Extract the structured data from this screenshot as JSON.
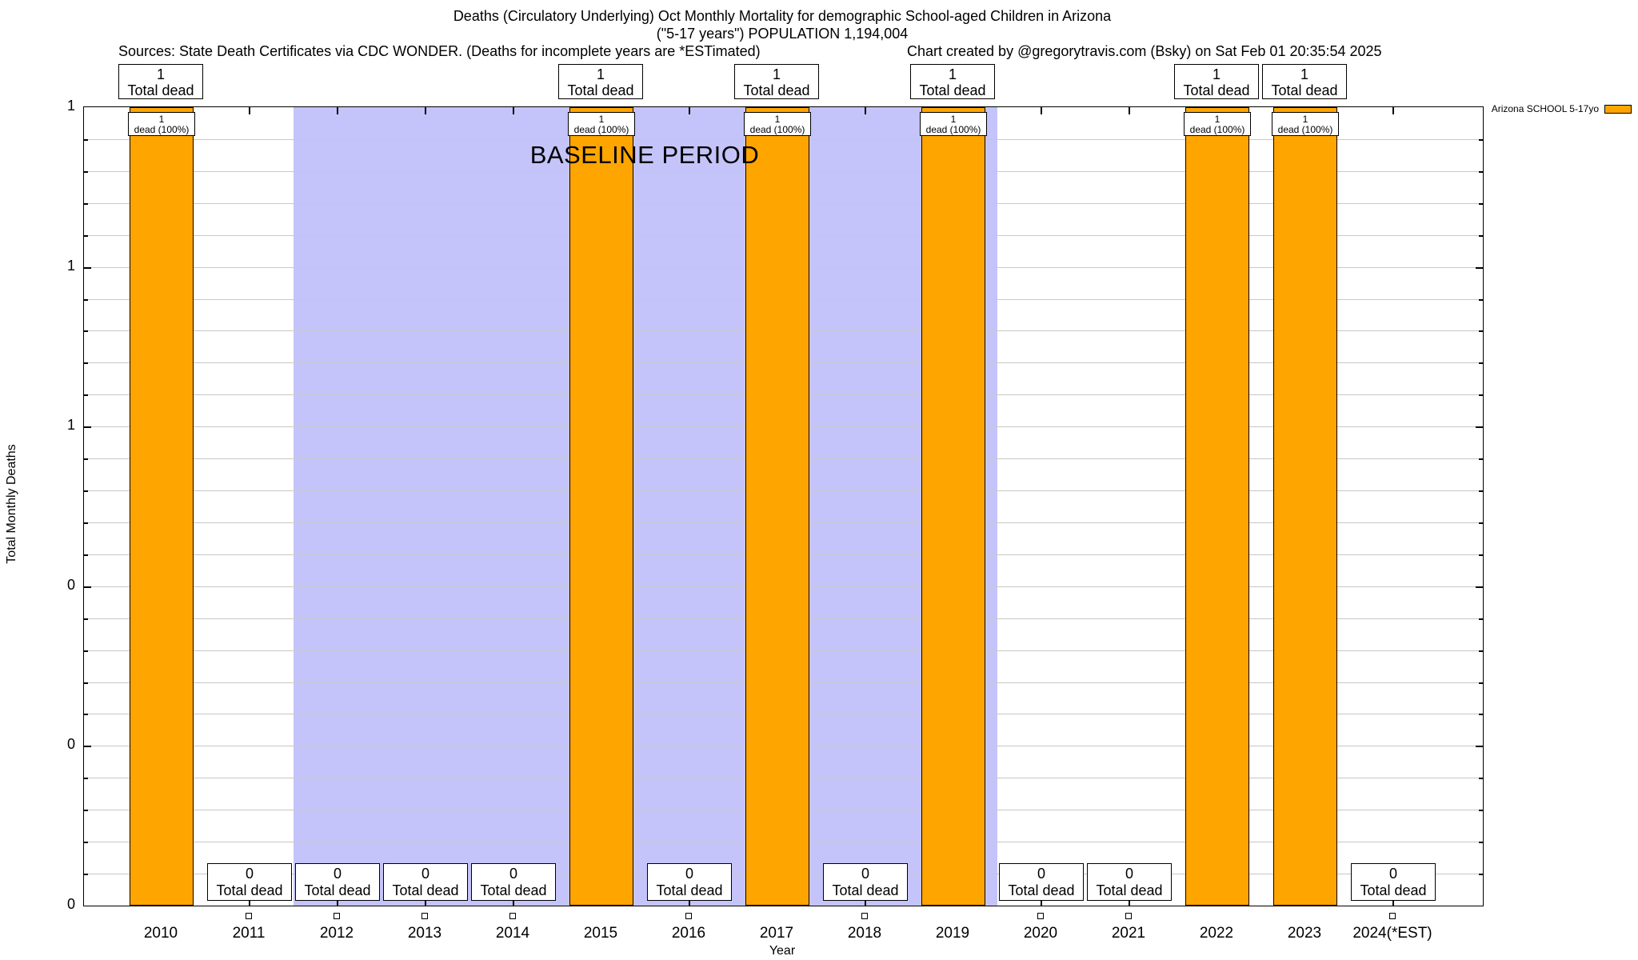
{
  "header": {
    "title": "Deaths (Circulatory Underlying) Oct Monthly Mortality for demographic School-aged Children in Arizona",
    "subtitle": "(\"5-17 years\") POPULATION 1,194,004",
    "sources": "Sources: State Death Certificates via CDC WONDER. (Deaths for incomplete years are *ESTimated)",
    "credit": "Chart created by @gregorytravis.com (Bsky) on Sat Feb 01 20:35:54 2025"
  },
  "legend": {
    "label": "Arizona SCHOOL 5-17yo",
    "color": "#FFA500"
  },
  "axes": {
    "ylabel": "Total Monthly Deaths",
    "xlabel": "Year",
    "ytick_labels": [
      "1",
      "1",
      "1",
      "0",
      "0",
      "0"
    ]
  },
  "baseline": {
    "label": "BASELINE PERIOD",
    "start_year": "2012",
    "end_year": "2019"
  },
  "annotations": {
    "total_dead_label": "Total dead",
    "bar_count_label": "1",
    "bar_pct_label": "dead (100%)",
    "zero_count_label": "0"
  },
  "chart_data": {
    "type": "bar",
    "title": "Deaths (Circulatory Underlying) Oct Monthly Mortality for demographic School-aged Children in Arizona",
    "subtitle": "(\"5-17 years\") POPULATION 1,194,004",
    "xlabel": "Year",
    "ylabel": "Total Monthly Deaths",
    "categories": [
      "2010",
      "2011",
      "2012",
      "2013",
      "2014",
      "2015",
      "2016",
      "2017",
      "2018",
      "2019",
      "2020",
      "2021",
      "2022",
      "2023",
      "2024(*EST)"
    ],
    "series": [
      {
        "name": "Arizona SCHOOL 5-17yo",
        "values": [
          1,
          0,
          0,
          0,
          0,
          1,
          0,
          1,
          0,
          1,
          0,
          0,
          1,
          1,
          0
        ]
      }
    ],
    "ylim": [
      0,
      1
    ],
    "ytick_values": [
      0,
      0.2,
      0.4,
      0.6,
      0.8,
      1.0
    ],
    "ytick_display": [
      "0",
      "0",
      "0",
      "1",
      "1",
      "1"
    ],
    "grid": true,
    "bar_color": "#FFA500",
    "bar_total_label": "Total dead",
    "bar_inner_label": "dead (100%)",
    "baseline_region": {
      "label": "BASELINE PERIOD",
      "from_year": "2012",
      "to_year": "2019",
      "color": "#C4C4FA"
    },
    "legend_position": "top-right-outside",
    "zero_marker": "open-square-below-axis"
  }
}
